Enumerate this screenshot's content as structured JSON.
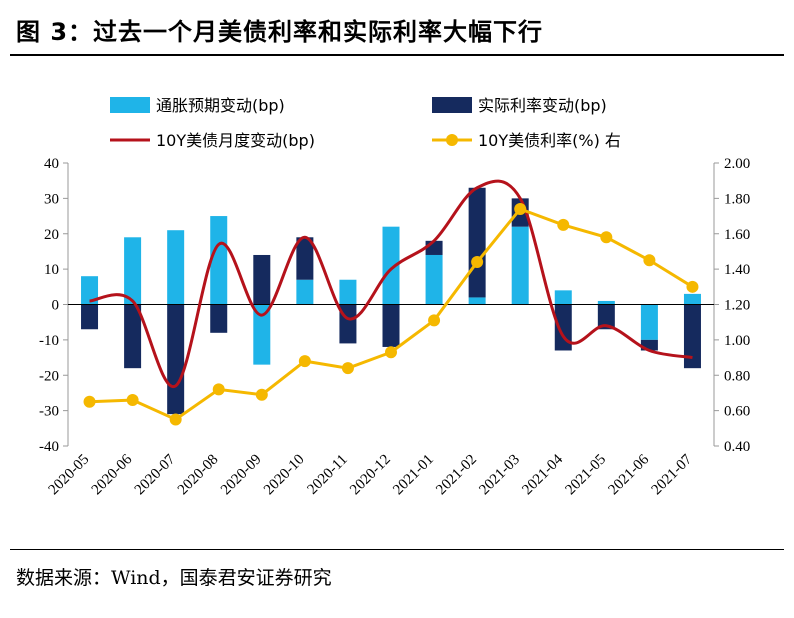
{
  "header": {
    "title": "图 3：过去一个月美债利率和实际利率大幅下行"
  },
  "footer": {
    "source": "数据来源：Wind，国泰君安证券研究"
  },
  "chart_data": {
    "type": "bar",
    "categories": [
      "2020-05",
      "2020-06",
      "2020-07",
      "2020-08",
      "2020-09",
      "2020-10",
      "2020-11",
      "2020-12",
      "2021-01",
      "2021-02",
      "2021-03",
      "2021-04",
      "2021-05",
      "2021-06",
      "2021-07"
    ],
    "series": [
      {
        "name": "通胀预期变动(bp)",
        "type": "bar",
        "axis": "left",
        "color": "#1fb4e8",
        "values": [
          8,
          19,
          21,
          25,
          -17,
          7,
          7,
          22,
          14,
          2,
          22,
          4,
          1,
          -10,
          3
        ]
      },
      {
        "name": "实际利率变动(bp)",
        "type": "bar",
        "axis": "left",
        "color": "#152a5e",
        "values": [
          -7,
          -18,
          -31,
          -8,
          14,
          12,
          -11,
          -12,
          4,
          31,
          8,
          -13,
          -7,
          -3,
          -18
        ]
      },
      {
        "name": "10Y美债月度变动(bp)",
        "type": "line",
        "axis": "left",
        "color": "#b5121b",
        "values": [
          1,
          1,
          -23,
          17,
          -3,
          19,
          -4,
          10,
          18,
          33,
          30,
          -9,
          -6,
          -13,
          -15
        ]
      },
      {
        "name": "10Y美债利率(%) 右",
        "type": "line",
        "axis": "right",
        "color": "#f5b800",
        "values": [
          0.65,
          0.66,
          0.55,
          0.72,
          0.69,
          0.88,
          0.84,
          0.93,
          1.11,
          1.44,
          1.74,
          1.65,
          1.58,
          1.45,
          1.3
        ]
      }
    ],
    "ylim_left": [
      -40,
      40
    ],
    "yticks_left": [
      "40",
      "30",
      "20",
      "10",
      "0",
      "-10",
      "-20",
      "-30",
      "-40"
    ],
    "ylim_right": [
      0.4,
      2.0
    ],
    "yticks_right": [
      "2.00",
      "1.80",
      "1.60",
      "1.40",
      "1.20",
      "1.00",
      "0.80",
      "0.60",
      "0.40"
    ],
    "legend_position": "top",
    "grid": false
  }
}
